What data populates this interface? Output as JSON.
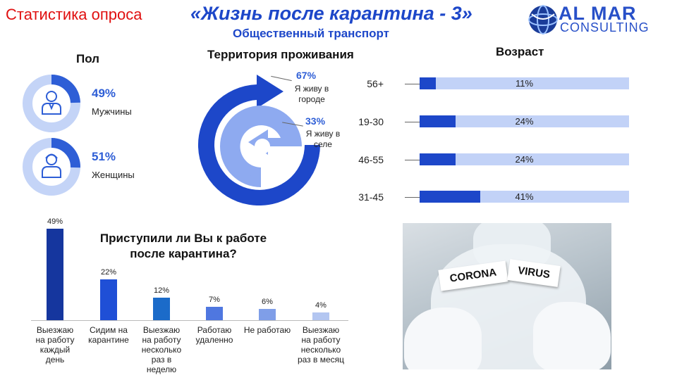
{
  "header": {
    "left_title": "Статистика опроса",
    "title": "«Жизнь после карантина - 3»",
    "subtitle": "Общественный транспорт",
    "logo_line1": "AL MAR",
    "logo_line2": "CONSULTING"
  },
  "gender": {
    "title": "Пол",
    "items": [
      {
        "pct": "49%",
        "label": "Мужчины",
        "value": 49
      },
      {
        "pct": "51%",
        "label": "Женщины",
        "value": 51
      }
    ]
  },
  "territory": {
    "title": "Территория проживания",
    "city_pct": "67%",
    "city_label": "Я живу в городе",
    "village_pct": "33%",
    "village_label": "Я живу в селе"
  },
  "photo": {
    "word1": "CORONA",
    "word2": "VIRUS"
  },
  "chart_data": [
    {
      "type": "pie",
      "title": "Пол",
      "categories": [
        "Мужчины",
        "Женщины"
      ],
      "values": [
        49,
        51
      ]
    },
    {
      "type": "pie",
      "title": "Территория проживания",
      "categories": [
        "Я живу в городе",
        "Я живу в селе"
      ],
      "values": [
        67,
        33
      ]
    },
    {
      "type": "bar",
      "title": "Возраст",
      "orientation": "horizontal",
      "categories": [
        "56+",
        "19-30",
        "46-55",
        "31-45"
      ],
      "values": [
        11,
        24,
        24,
        41
      ],
      "labels": [
        "11%",
        "24%",
        "24%",
        "41%"
      ],
      "xlim": [
        0,
        100
      ],
      "colors": {
        "fill": "#1d47c9",
        "track": "#c2d2f7"
      }
    },
    {
      "type": "bar",
      "title": "Приступили ли Вы к работе после карантина?",
      "categories": [
        "Выезжаю на работу каждый день",
        "Сидим на карантине",
        "Выезжаю на работу несколько раз в неделю",
        "Работаю удаленно",
        "Не работаю",
        "Выезжаю на работу несколько раз в месяц"
      ],
      "category_lines": [
        [
          "Выезжаю",
          "на работу",
          "каждый",
          "день"
        ],
        [
          "Сидим на",
          "карантине"
        ],
        [
          "Выезжаю",
          "на работу",
          "несколько",
          "раз в",
          "неделю"
        ],
        [
          "Работаю",
          "удаленно"
        ],
        [
          "Не работаю"
        ],
        [
          "Выезжаю",
          "на работу",
          "несколько",
          "раз в месяц"
        ]
      ],
      "values": [
        49,
        22,
        12,
        7,
        6,
        4
      ],
      "labels": [
        "49%",
        "22%",
        "12%",
        "7%",
        "6%",
        "4%"
      ],
      "colors": [
        "#15369e",
        "#1f4fd6",
        "#1b6bc9",
        "#4f77e0",
        "#7f9ee8",
        "#b3c6f1"
      ]
    }
  ]
}
